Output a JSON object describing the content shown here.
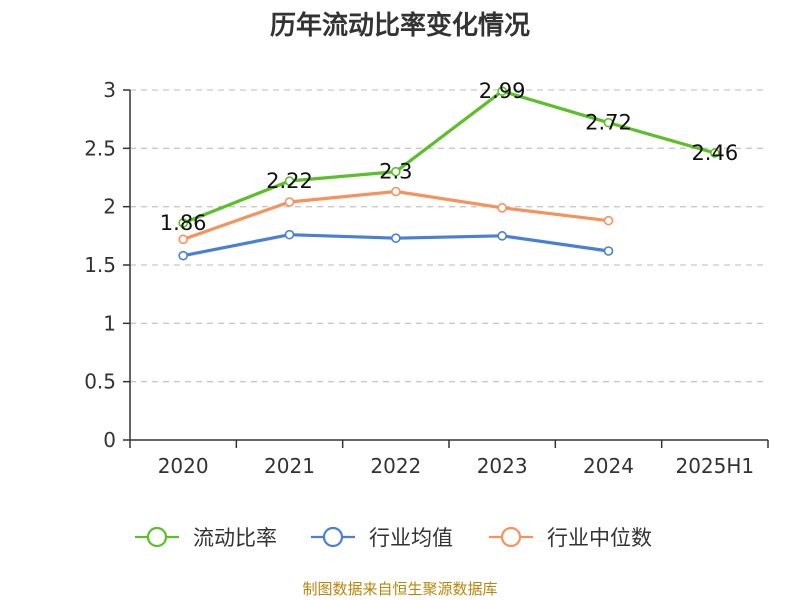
{
  "chart_data": {
    "type": "line",
    "title": "历年流动比率变化情况",
    "categories": [
      "2020",
      "2021",
      "2022",
      "2023",
      "2024",
      "2025H1"
    ],
    "ylim": [
      0,
      3
    ],
    "yticks": [
      "0",
      "0.5",
      "1",
      "1.5",
      "2",
      "2.5",
      "3"
    ],
    "grid": true,
    "legend_position": "bottom",
    "series": [
      {
        "name": "流动比率",
        "color": "#5cbf2a",
        "values": [
          1.86,
          2.22,
          2.3,
          2.99,
          2.72,
          2.46
        ],
        "labels": [
          "1.86",
          "2.22",
          "2.3",
          "2.99",
          "2.72",
          "2.46"
        ]
      },
      {
        "name": "行业均值",
        "color": "#4a7fd6",
        "values": [
          1.58,
          1.76,
          1.73,
          1.75,
          1.62,
          null
        ]
      },
      {
        "name": "行业中位数",
        "color": "#f5925e",
        "values": [
          1.72,
          2.04,
          2.13,
          1.99,
          1.88,
          null
        ]
      }
    ],
    "source": "制图数据来自恒生聚源数据库"
  }
}
